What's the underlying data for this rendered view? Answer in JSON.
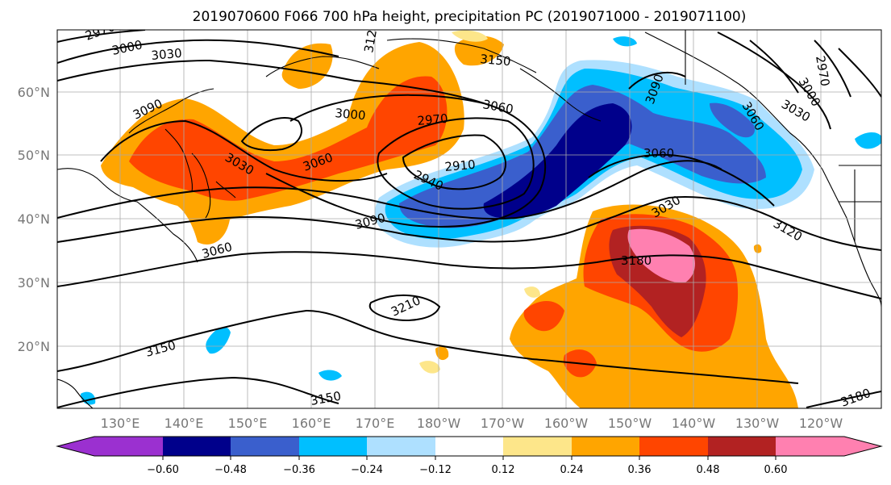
{
  "title": "2019070600 F066 700 hPa height, precipitation PC (2019071000 - 2019071100)",
  "map": {
    "lat_ticks": [
      "60°N",
      "50°N",
      "40°N",
      "30°N",
      "20°N"
    ],
    "lon_ticks": [
      "130°E",
      "140°E",
      "150°E",
      "160°E",
      "170°E",
      "180°W",
      "170°W",
      "160°W",
      "150°W",
      "140°W",
      "130°W",
      "120°W"
    ],
    "contour_labels": [
      "2970",
      "3000",
      "3030",
      "3090",
      "3120",
      "3150",
      "3000",
      "2970",
      "3060",
      "3060",
      "3090",
      "3060",
      "2970",
      "3000",
      "3030",
      "2940",
      "2910",
      "3090",
      "3030",
      "3060",
      "3060",
      "3030",
      "3180",
      "3120",
      "3210",
      "3150",
      "3150",
      "3180"
    ],
    "colors": {
      "pos_light": "#fde68a",
      "pos_1": "#ffa500",
      "pos_2": "#ff4500",
      "pos_3": "#b22222",
      "pos_4": "#ff80b0",
      "neg_light": "#aee0ff",
      "neg_1": "#00bfff",
      "neg_2": "#3a5fcd",
      "neg_3": "#00008b",
      "neg_4": "#9b30d0"
    }
  },
  "colorbar": {
    "ticks": [
      "−0.60",
      "−0.48",
      "−0.36",
      "−0.24",
      "−0.12",
      "0.12",
      "0.24",
      "0.36",
      "0.48",
      "0.60"
    ],
    "bin_colors": [
      "#9b30d0",
      "#00008b",
      "#3a5fcd",
      "#00bfff",
      "#aee0ff",
      "#ffffff",
      "#fde68a",
      "#ffa500",
      "#ff4500",
      "#b22222",
      "#ff80b0"
    ]
  }
}
